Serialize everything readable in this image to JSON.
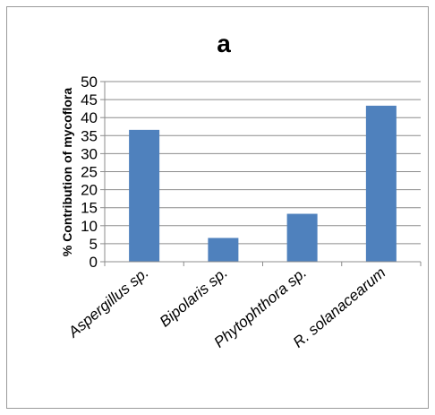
{
  "chart_data": {
    "type": "bar",
    "title": "a",
    "xlabel": "",
    "ylabel": "% Contribution of mycoflora",
    "categories": [
      "Aspergillus sp.",
      "Bipolaris sp.",
      "Phytophthora sp.",
      "R. solanacearum"
    ],
    "values": [
      36.6,
      6.6,
      13.3,
      43.3
    ],
    "ylim": [
      0,
      50
    ],
    "yticks": [
      "0",
      "5",
      "10",
      "15",
      "20",
      "25",
      "30",
      "35",
      "40",
      "45",
      "50"
    ],
    "grid": true,
    "legend": "none",
    "bar_color": "#4f81bd"
  }
}
